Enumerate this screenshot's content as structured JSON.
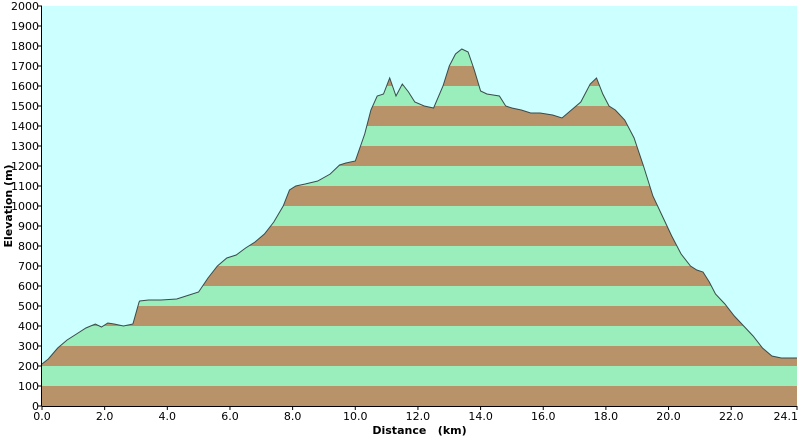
{
  "chart_data": {
    "type": "area",
    "title": "",
    "xlabel": "Distance   (km)",
    "ylabel": "Elevation (m)",
    "xlim": [
      0,
      24.1
    ],
    "ylim": [
      0,
      2000
    ],
    "x_ticks": [
      0.0,
      2.0,
      4.0,
      6.0,
      8.0,
      10.0,
      12.0,
      14.0,
      16.0,
      18.0,
      20.0,
      22.0,
      24.1
    ],
    "x_tick_labels": [
      "0.0",
      "2.0",
      "4.0",
      "6.0",
      "8.0",
      "10.0",
      "12.0",
      "14.0",
      "16.0",
      "18.0",
      "20.0",
      "22.0",
      "24.1"
    ],
    "y_ticks": [
      0,
      100,
      200,
      300,
      400,
      500,
      600,
      700,
      800,
      900,
      1000,
      1100,
      1200,
      1300,
      1400,
      1500,
      1600,
      1700,
      1800,
      1900,
      2000
    ],
    "y_tick_labels": [
      "0",
      "100",
      "200",
      "300",
      "400",
      "500",
      "600",
      "700",
      "800",
      "900",
      "1000",
      "1100",
      "1200",
      "1300",
      "1400",
      "1500",
      "1600",
      "1700",
      "1800",
      "1900",
      "2000"
    ],
    "band_height": 100,
    "grid": false,
    "colors": {
      "plot_background": "#ccffff",
      "band_brown": "#b8936a",
      "band_green": "#99eebb",
      "outline": "#3a4a4a"
    },
    "x": [
      0.0,
      0.2,
      0.5,
      0.8,
      1.1,
      1.4,
      1.7,
      1.9,
      2.1,
      2.3,
      2.6,
      2.9,
      3.1,
      3.12,
      3.4,
      3.8,
      4.3,
      4.7,
      5.0,
      5.3,
      5.6,
      5.9,
      6.2,
      6.5,
      6.8,
      7.1,
      7.4,
      7.7,
      7.9,
      8.1,
      8.4,
      8.8,
      9.2,
      9.5,
      9.7,
      10.0,
      10.3,
      10.5,
      10.7,
      10.9,
      11.1,
      11.3,
      11.5,
      11.7,
      11.9,
      12.2,
      12.5,
      12.8,
      13.0,
      13.2,
      13.4,
      13.6,
      13.8,
      14.0,
      14.2,
      14.4,
      14.6,
      14.8,
      15.0,
      15.3,
      15.6,
      15.9,
      16.3,
      16.6,
      16.9,
      17.2,
      17.5,
      17.7,
      17.9,
      18.1,
      18.3,
      18.6,
      18.9,
      19.2,
      19.5,
      19.8,
      20.1,
      20.4,
      20.7,
      20.9,
      21.1,
      21.3,
      21.5,
      21.8,
      22.1,
      22.4,
      22.7,
      23.0,
      23.3,
      23.6,
      23.9,
      24.1
    ],
    "y": [
      210,
      235,
      290,
      330,
      360,
      390,
      410,
      395,
      415,
      410,
      400,
      410,
      520,
      525,
      530,
      530,
      535,
      555,
      570,
      640,
      700,
      740,
      755,
      790,
      820,
      860,
      920,
      1000,
      1080,
      1100,
      1110,
      1125,
      1160,
      1205,
      1215,
      1225,
      1360,
      1480,
      1550,
      1560,
      1640,
      1550,
      1610,
      1570,
      1520,
      1500,
      1490,
      1600,
      1700,
      1760,
      1785,
      1770,
      1680,
      1575,
      1560,
      1555,
      1550,
      1500,
      1490,
      1480,
      1465,
      1465,
      1455,
      1440,
      1480,
      1520,
      1610,
      1640,
      1560,
      1500,
      1480,
      1430,
      1340,
      1200,
      1050,
      950,
      850,
      760,
      700,
      680,
      670,
      620,
      560,
      510,
      450,
      400,
      350,
      290,
      250,
      240,
      240,
      240
    ]
  }
}
